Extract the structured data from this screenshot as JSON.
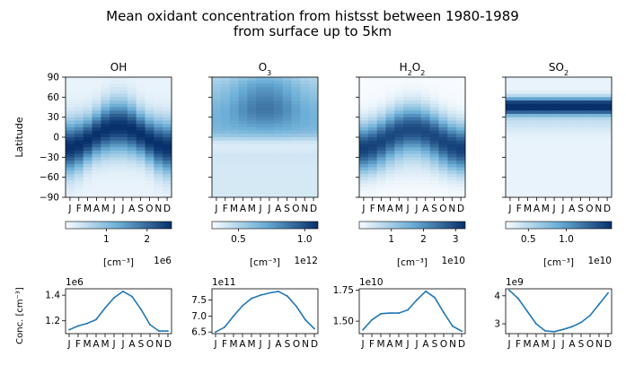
{
  "title_line1": "Mean oxidant concentration from histsst between 1980-1989",
  "title_line2": "from surface up to 5km",
  "heatmap_ylabel": "Latitude",
  "line_ylabel": "Conc. [cm⁻³]",
  "month_ticks": [
    "J",
    "F",
    "M",
    "A",
    "M",
    "J",
    "J",
    "A",
    "S",
    "O",
    "N",
    "D"
  ],
  "lat_ticks": [
    "90",
    "60",
    "30",
    "0",
    "−30",
    "−60",
    "−90"
  ],
  "colors": {
    "cmap_light": "#f7fbff",
    "cmap_dark": "#08306b",
    "line": "#1f77b4"
  },
  "chart_data": [
    {
      "type": "heatmap",
      "title_base": "OH",
      "title_sub": "",
      "x": [
        "J",
        "F",
        "M",
        "A",
        "M",
        "J",
        "J",
        "A",
        "S",
        "O",
        "N",
        "D"
      ],
      "ylim": [
        -90,
        90
      ],
      "yticks": [
        90,
        60,
        30,
        0,
        -30,
        -60,
        -90
      ],
      "colorbar": {
        "label": "[cm⁻³]",
        "scale": "1e6",
        "range": [
          0,
          2.6
        ],
        "ticks": [
          1,
          2
        ],
        "tick_labels": [
          "1",
          "2"
        ]
      }
    },
    {
      "type": "heatmap",
      "title_base": "O",
      "title_sub": "3",
      "x": [
        "J",
        "F",
        "M",
        "A",
        "M",
        "J",
        "J",
        "A",
        "S",
        "O",
        "N",
        "D"
      ],
      "ylim": [
        -90,
        90
      ],
      "colorbar": {
        "label": "[cm⁻³]",
        "scale": "1e12",
        "range": [
          0.3,
          1.1
        ],
        "ticks": [
          0.5,
          1.0
        ],
        "tick_labels": [
          "0.5",
          "1.0"
        ]
      }
    },
    {
      "type": "heatmap",
      "title_base": "H",
      "title_sub": "2",
      "title_mid": "O",
      "title_sub2": "2",
      "x": [
        "J",
        "F",
        "M",
        "A",
        "M",
        "J",
        "J",
        "A",
        "S",
        "O",
        "N",
        "D"
      ],
      "ylim": [
        -90,
        90
      ],
      "colorbar": {
        "label": "[cm⁻³]",
        "scale": "1e10",
        "range": [
          0,
          3.3
        ],
        "ticks": [
          1,
          2,
          3
        ],
        "tick_labels": [
          "1",
          "2",
          "3"
        ]
      }
    },
    {
      "type": "heatmap",
      "title_base": "SO",
      "title_sub": "2",
      "x": [
        "J",
        "F",
        "M",
        "A",
        "M",
        "J",
        "J",
        "A",
        "S",
        "O",
        "N",
        "D"
      ],
      "ylim": [
        -90,
        90
      ],
      "colorbar": {
        "label": "[cm⁻³]",
        "scale": "1e10",
        "range": [
          0.2,
          1.6
        ],
        "ticks": [
          0.5,
          1.0
        ],
        "tick_labels": [
          "0.5",
          "1.0"
        ]
      }
    },
    {
      "type": "line",
      "x": [
        "J",
        "F",
        "M",
        "A",
        "M",
        "J",
        "J",
        "A",
        "S",
        "O",
        "N",
        "D"
      ],
      "values": [
        1.13,
        1.16,
        1.18,
        1.21,
        1.3,
        1.38,
        1.43,
        1.39,
        1.29,
        1.17,
        1.12,
        1.12
      ],
      "ylim": [
        1.1,
        1.45
      ],
      "yticks": [
        1.2,
        1.4
      ],
      "ytick_labels": [
        "1.2",
        "1.4"
      ],
      "scale": "1e6"
    },
    {
      "type": "line",
      "x": [
        "J",
        "F",
        "M",
        "A",
        "M",
        "J",
        "J",
        "A",
        "S",
        "O",
        "N",
        "D"
      ],
      "values": [
        6.5,
        6.65,
        7.0,
        7.32,
        7.55,
        7.65,
        7.72,
        7.77,
        7.62,
        7.3,
        6.88,
        6.6
      ],
      "ylim": [
        6.45,
        7.85
      ],
      "yticks": [
        6.5,
        7.0,
        7.5
      ],
      "ytick_labels": [
        "6.5",
        "7.0",
        "7.5"
      ],
      "scale": "1e11"
    },
    {
      "type": "line",
      "x": [
        "J",
        "F",
        "M",
        "A",
        "M",
        "J",
        "J",
        "A",
        "S",
        "O",
        "N",
        "D"
      ],
      "values": [
        1.43,
        1.51,
        1.56,
        1.565,
        1.565,
        1.59,
        1.67,
        1.74,
        1.69,
        1.57,
        1.46,
        1.42
      ],
      "ylim": [
        1.4,
        1.76
      ],
      "yticks": [
        1.5,
        1.75
      ],
      "ytick_labels": [
        "1.50",
        "1.75"
      ],
      "scale": "1e10"
    },
    {
      "type": "line",
      "x": [
        "J",
        "F",
        "M",
        "A",
        "M",
        "J",
        "J",
        "A",
        "S",
        "O",
        "N",
        "D"
      ],
      "values": [
        4.2,
        3.9,
        3.45,
        3.0,
        2.75,
        2.72,
        2.8,
        2.9,
        3.05,
        3.3,
        3.7,
        4.1
      ],
      "ylim": [
        2.65,
        4.25
      ],
      "yticks": [
        3,
        4
      ],
      "ytick_labels": [
        "3",
        "4"
      ],
      "scale": "1e9"
    }
  ]
}
